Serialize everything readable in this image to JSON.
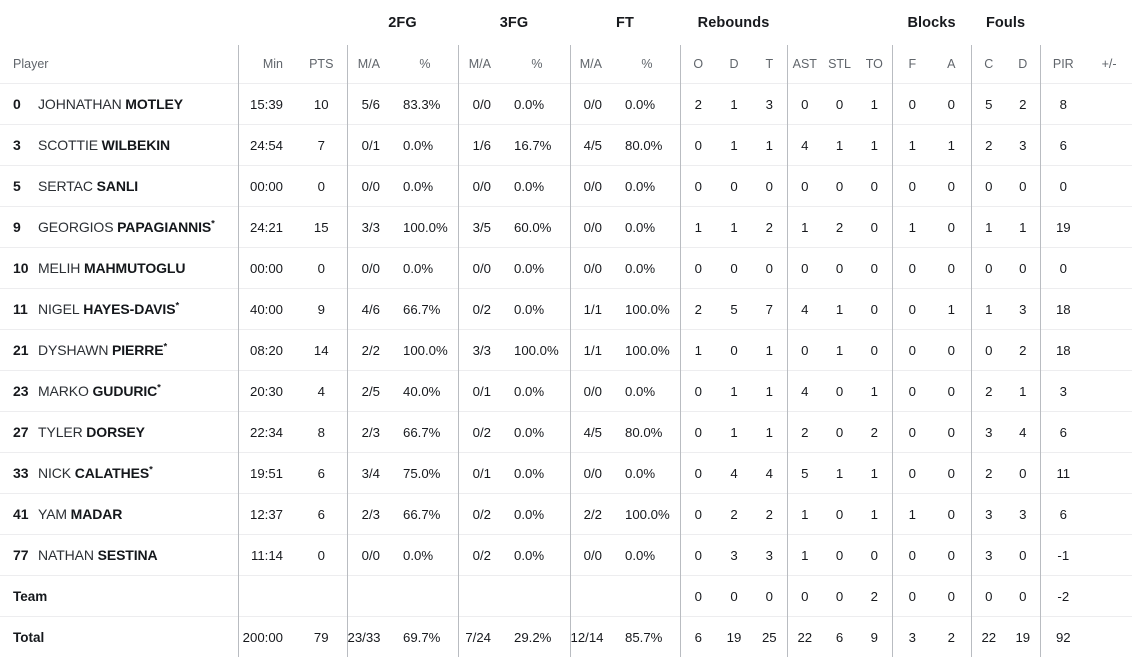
{
  "table": {
    "groups": [
      "2FG",
      "3FG",
      "FT",
      "Rebounds",
      "Blocks",
      "Fouls"
    ],
    "columns": [
      "Player",
      "Min",
      "PTS",
      "M/A",
      "%",
      "M/A",
      "%",
      "M/A",
      "%",
      "O",
      "D",
      "T",
      "AST",
      "STL",
      "TO",
      "F",
      "A",
      "C",
      "D",
      "PIR",
      "+/-"
    ],
    "rows": [
      {
        "num": "0",
        "first": "JOHNATHAN",
        "last": "MOTLEY",
        "starter": false,
        "stats": [
          "15:39",
          "10",
          "5/6",
          "83.3%",
          "0/0",
          "0.0%",
          "0/0",
          "0.0%",
          "2",
          "1",
          "3",
          "0",
          "0",
          "1",
          "0",
          "0",
          "5",
          "2",
          "8",
          ""
        ]
      },
      {
        "num": "3",
        "first": "SCOTTIE",
        "last": "WILBEKIN",
        "starter": false,
        "stats": [
          "24:54",
          "7",
          "0/1",
          "0.0%",
          "1/6",
          "16.7%",
          "4/5",
          "80.0%",
          "0",
          "1",
          "1",
          "4",
          "1",
          "1",
          "1",
          "1",
          "2",
          "3",
          "6",
          ""
        ]
      },
      {
        "num": "5",
        "first": "SERTAC",
        "last": "SANLI",
        "starter": false,
        "stats": [
          "00:00",
          "0",
          "0/0",
          "0.0%",
          "0/0",
          "0.0%",
          "0/0",
          "0.0%",
          "0",
          "0",
          "0",
          "0",
          "0",
          "0",
          "0",
          "0",
          "0",
          "0",
          "0",
          ""
        ]
      },
      {
        "num": "9",
        "first": "GEORGIOS",
        "last": "PAPAGIANNIS",
        "starter": true,
        "stats": [
          "24:21",
          "15",
          "3/3",
          "100.0%",
          "3/5",
          "60.0%",
          "0/0",
          "0.0%",
          "1",
          "1",
          "2",
          "1",
          "2",
          "0",
          "1",
          "0",
          "1",
          "1",
          "19",
          ""
        ]
      },
      {
        "num": "10",
        "first": "MELIH",
        "last": "MAHMUTOGLU",
        "starter": false,
        "stats": [
          "00:00",
          "0",
          "0/0",
          "0.0%",
          "0/0",
          "0.0%",
          "0/0",
          "0.0%",
          "0",
          "0",
          "0",
          "0",
          "0",
          "0",
          "0",
          "0",
          "0",
          "0",
          "0",
          ""
        ]
      },
      {
        "num": "11",
        "first": "NIGEL",
        "last": "HAYES-DAVIS",
        "starter": true,
        "stats": [
          "40:00",
          "9",
          "4/6",
          "66.7%",
          "0/2",
          "0.0%",
          "1/1",
          "100.0%",
          "2",
          "5",
          "7",
          "4",
          "1",
          "0",
          "0",
          "1",
          "1",
          "3",
          "18",
          ""
        ]
      },
      {
        "num": "21",
        "first": "DYSHAWN",
        "last": "PIERRE",
        "starter": true,
        "stats": [
          "08:20",
          "14",
          "2/2",
          "100.0%",
          "3/3",
          "100.0%",
          "1/1",
          "100.0%",
          "1",
          "0",
          "1",
          "0",
          "1",
          "0",
          "0",
          "0",
          "0",
          "2",
          "18",
          ""
        ]
      },
      {
        "num": "23",
        "first": "MARKO",
        "last": "GUDURIC",
        "starter": true,
        "stats": [
          "20:30",
          "4",
          "2/5",
          "40.0%",
          "0/1",
          "0.0%",
          "0/0",
          "0.0%",
          "0",
          "1",
          "1",
          "4",
          "0",
          "1",
          "0",
          "0",
          "2",
          "1",
          "3",
          ""
        ]
      },
      {
        "num": "27",
        "first": "TYLER",
        "last": "DORSEY",
        "starter": false,
        "stats": [
          "22:34",
          "8",
          "2/3",
          "66.7%",
          "0/2",
          "0.0%",
          "4/5",
          "80.0%",
          "0",
          "1",
          "1",
          "2",
          "0",
          "2",
          "0",
          "0",
          "3",
          "4",
          "6",
          ""
        ]
      },
      {
        "num": "33",
        "first": "NICK",
        "last": "CALATHES",
        "starter": true,
        "stats": [
          "19:51",
          "6",
          "3/4",
          "75.0%",
          "0/1",
          "0.0%",
          "0/0",
          "0.0%",
          "0",
          "4",
          "4",
          "5",
          "1",
          "1",
          "0",
          "0",
          "2",
          "0",
          "11",
          ""
        ]
      },
      {
        "num": "41",
        "first": "YAM",
        "last": "MADAR",
        "starter": false,
        "stats": [
          "12:37",
          "6",
          "2/3",
          "66.7%",
          "0/2",
          "0.0%",
          "2/2",
          "100.0%",
          "0",
          "2",
          "2",
          "1",
          "0",
          "1",
          "1",
          "0",
          "3",
          "3",
          "6",
          ""
        ]
      },
      {
        "num": "77",
        "first": "NATHAN",
        "last": "SESTINA",
        "starter": false,
        "stats": [
          "11:14",
          "0",
          "0/0",
          "0.0%",
          "0/2",
          "0.0%",
          "0/0",
          "0.0%",
          "0",
          "3",
          "3",
          "1",
          "0",
          "0",
          "0",
          "0",
          "3",
          "0",
          "-1",
          ""
        ]
      }
    ],
    "team_row": {
      "label": "Team",
      "stats": [
        "",
        "",
        "",
        "",
        "",
        "",
        "",
        "",
        "0",
        "0",
        "0",
        "0",
        "0",
        "2",
        "0",
        "0",
        "0",
        "0",
        "-2",
        ""
      ]
    },
    "total_row": {
      "label": "Total",
      "stats": [
        "200:00",
        "79",
        "23/33",
        "69.7%",
        "7/24",
        "29.2%",
        "12/14",
        "85.7%",
        "6",
        "19",
        "25",
        "22",
        "6",
        "9",
        "3",
        "2",
        "22",
        "19",
        "92",
        ""
      ]
    },
    "starter_marker": "*",
    "colors": {
      "text": "#17191d",
      "header_muted": "#60656b",
      "group_separator": "#b9bcc1",
      "row_divider": "#ededef",
      "background": "#ffffff"
    }
  }
}
